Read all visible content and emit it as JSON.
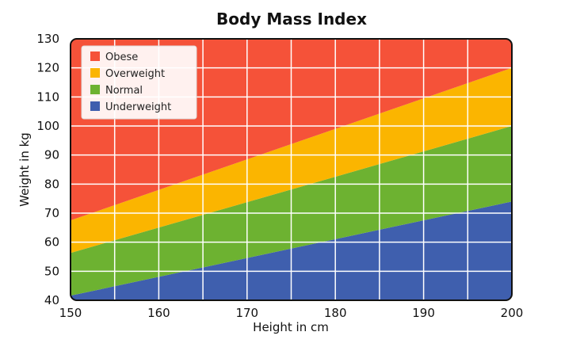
{
  "chart_data": {
    "type": "area",
    "title": "Body Mass Index",
    "xlabel": "Height in cm",
    "ylabel": "Weight in kg",
    "xlim": [
      150,
      200
    ],
    "ylim": [
      40,
      130
    ],
    "x_ticks": [
      150,
      160,
      170,
      180,
      190,
      200
    ],
    "y_ticks": [
      40,
      50,
      60,
      70,
      80,
      90,
      100,
      110,
      120,
      130
    ],
    "grid": true,
    "legend_position": "top-left",
    "bands": [
      {
        "name": "Underweight",
        "color": "#3F5FAE",
        "lower": [
          40,
          40
        ],
        "upper": [
          41.6,
          74
        ]
      },
      {
        "name": "Normal",
        "color": "#6DB231",
        "lower": [
          41.6,
          74
        ],
        "upper": [
          56.3,
          100
        ]
      },
      {
        "name": "Overweight",
        "color": "#FBB500",
        "lower": [
          56.3,
          100
        ],
        "upper": [
          67.5,
          120
        ]
      },
      {
        "name": "Obese",
        "color": "#F55239",
        "lower": [
          67.5,
          120
        ],
        "upper": [
          130,
          130
        ]
      }
    ],
    "band_x": [
      150,
      200
    ],
    "legend": [
      "Obese",
      "Overweight",
      "Normal",
      "Underweight"
    ]
  }
}
